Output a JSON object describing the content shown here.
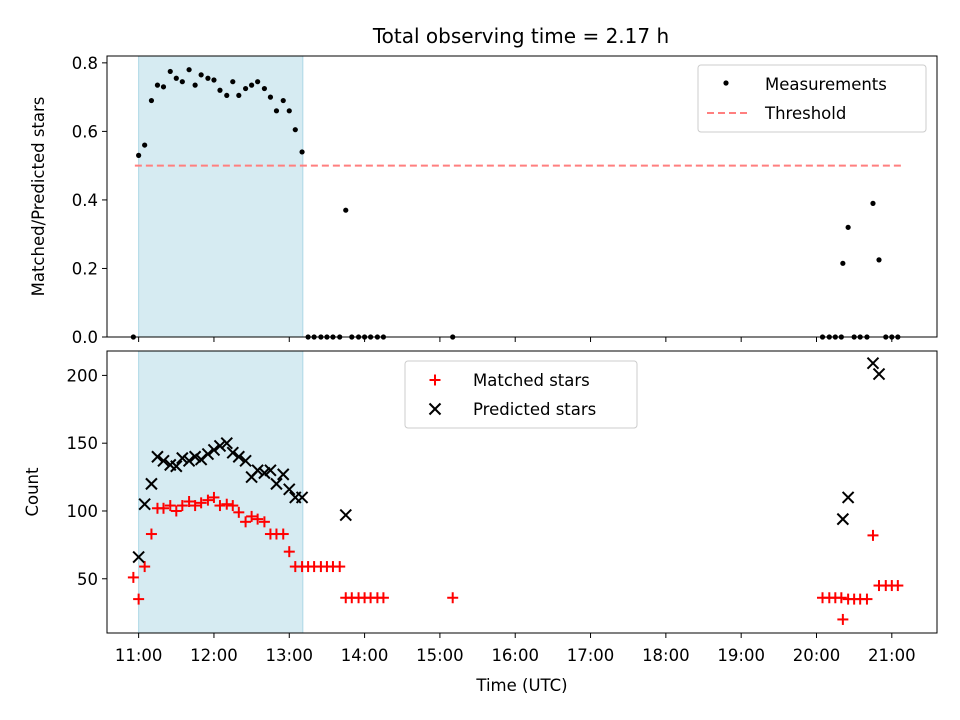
{
  "title": "Total observing time = 2.17 h",
  "highlight": {
    "start": 11.0,
    "end": 13.18,
    "color": "#add8e6"
  },
  "xlabel": "Time (UTC)",
  "x_ticks": [
    11,
    12,
    13,
    14,
    15,
    16,
    17,
    18,
    19,
    20,
    21
  ],
  "x_tick_labels": [
    "11:00",
    "12:00",
    "13:00",
    "14:00",
    "15:00",
    "16:00",
    "17:00",
    "18:00",
    "19:00",
    "20:00",
    "21:00"
  ],
  "chart_data": [
    {
      "type": "scatter",
      "ylabel": "Matched/Predicted stars",
      "xlim": [
        10.58,
        21.6
      ],
      "ylim": [
        0,
        0.82
      ],
      "y_ticks": [
        0,
        0.2,
        0.4,
        0.6,
        0.8
      ],
      "y_tick_labels": [
        "0.0",
        "0.2",
        "0.4",
        "0.6",
        "0.8"
      ],
      "threshold": {
        "name": "Threshold",
        "value": 0.5,
        "x_range": [
          10.95,
          21.15
        ],
        "color": "#ff7f7f"
      },
      "series": [
        {
          "name": "Measurements",
          "color": "#000000",
          "marker": "dot",
          "x": [
            10.93,
            11.0,
            11.08,
            11.17,
            11.25,
            11.33,
            11.42,
            11.5,
            11.58,
            11.67,
            11.75,
            11.83,
            11.92,
            12.0,
            12.08,
            12.17,
            12.25,
            12.33,
            12.42,
            12.5,
            12.58,
            12.67,
            12.75,
            12.83,
            12.92,
            13.0,
            13.08,
            13.17,
            13.25,
            13.33,
            13.42,
            13.5,
            13.58,
            13.67,
            13.75,
            13.83,
            13.92,
            14.0,
            14.08,
            14.17,
            14.25,
            15.17,
            20.08,
            20.17,
            20.25,
            20.33,
            20.35,
            20.42,
            20.5,
            20.58,
            20.67,
            20.75,
            20.83,
            20.92,
            21.0,
            21.08
          ],
          "y": [
            0.0,
            0.53,
            0.56,
            0.69,
            0.735,
            0.73,
            0.775,
            0.755,
            0.745,
            0.78,
            0.735,
            0.765,
            0.755,
            0.75,
            0.72,
            0.705,
            0.745,
            0.705,
            0.725,
            0.735,
            0.745,
            0.725,
            0.7,
            0.66,
            0.69,
            0.66,
            0.605,
            0.54,
            0.0,
            0.0,
            0.0,
            0.0,
            0.0,
            0.0,
            0.37,
            0.0,
            0.0,
            0.0,
            0.0,
            0.0,
            0.0,
            0.0,
            0.0,
            0.0,
            0.0,
            0.0,
            0.215,
            0.32,
            0.0,
            0.0,
            0.0,
            0.39,
            0.225,
            0.0,
            0.0,
            0.0
          ]
        }
      ],
      "legend": "top-right"
    },
    {
      "type": "scatter",
      "ylabel": "Count",
      "xlim": [
        10.58,
        21.6
      ],
      "ylim": [
        10,
        218
      ],
      "y_ticks": [
        50,
        100,
        150,
        200
      ],
      "y_tick_labels": [
        "50",
        "100",
        "150",
        "200"
      ],
      "series": [
        {
          "name": "Matched stars",
          "color": "#ff0000",
          "marker": "plus",
          "x": [
            10.93,
            11.0,
            11.08,
            11.17,
            11.25,
            11.33,
            11.42,
            11.5,
            11.58,
            11.67,
            11.75,
            11.83,
            11.92,
            12.0,
            12.08,
            12.17,
            12.25,
            12.33,
            12.42,
            12.5,
            12.58,
            12.67,
            12.75,
            12.83,
            12.92,
            13.0,
            13.08,
            13.17,
            13.25,
            13.33,
            13.42,
            13.5,
            13.58,
            13.67,
            13.75,
            13.83,
            13.92,
            14.0,
            14.08,
            14.17,
            14.25,
            15.17,
            20.08,
            20.17,
            20.25,
            20.33,
            20.35,
            20.42,
            20.5,
            20.58,
            20.67,
            20.75,
            20.83,
            20.92,
            21.0,
            21.08
          ],
          "y": [
            51,
            35,
            59,
            83,
            102,
            102,
            104,
            100,
            104,
            107,
            104,
            106,
            108,
            110,
            104,
            105,
            104,
            99,
            92,
            96,
            94,
            92,
            83,
            83,
            83,
            70,
            59,
            59,
            59,
            59,
            59,
            59,
            59,
            59,
            36,
            36,
            36,
            36,
            36,
            36,
            36,
            36,
            36,
            36,
            36,
            36,
            20,
            35,
            35,
            35,
            35,
            82,
            45,
            45,
            45,
            45
          ]
        },
        {
          "name": "Predicted stars",
          "color": "#000000",
          "marker": "x",
          "x": [
            11.0,
            11.08,
            11.17,
            11.25,
            11.33,
            11.42,
            11.5,
            11.58,
            11.67,
            11.75,
            11.83,
            11.92,
            12.0,
            12.08,
            12.17,
            12.25,
            12.33,
            12.42,
            12.5,
            12.58,
            12.67,
            12.75,
            12.83,
            12.92,
            13.0,
            13.08,
            13.17,
            13.75,
            20.35,
            20.42,
            20.75,
            20.83
          ],
          "y": [
            66,
            105,
            120,
            140,
            137,
            134,
            133,
            139,
            137,
            140,
            138,
            142,
            145,
            148,
            150,
            143,
            140,
            137,
            125,
            130,
            128,
            130,
            120,
            127,
            116,
            110,
            110,
            97,
            94,
            110,
            209,
            201
          ]
        }
      ],
      "legend": "upper center"
    }
  ]
}
